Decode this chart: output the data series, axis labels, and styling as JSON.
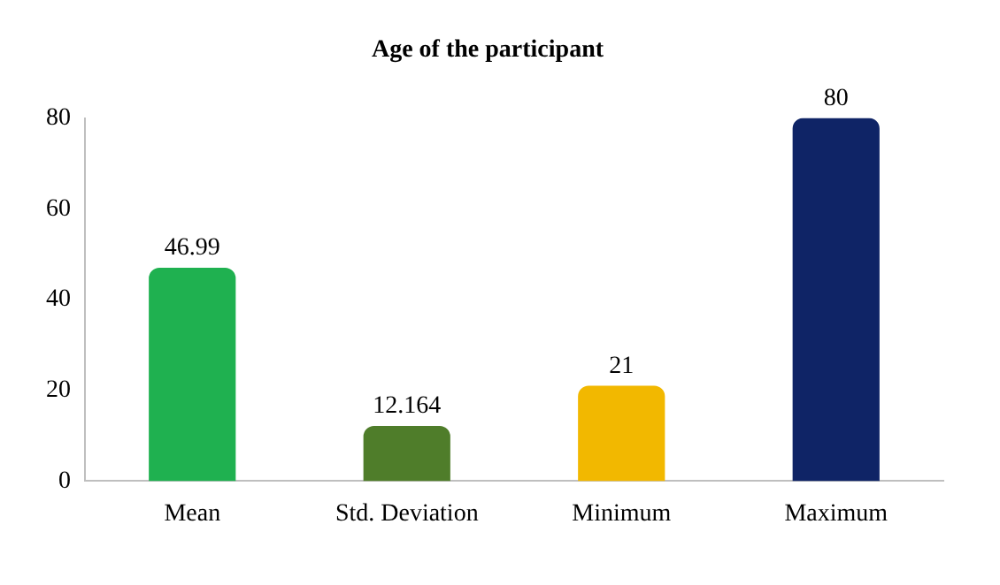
{
  "chart_data": {
    "type": "bar",
    "title": "Age of the participant",
    "categories": [
      "Mean",
      "Std. Deviation",
      "Minimum",
      "Maximum"
    ],
    "values": [
      46.99,
      12.164,
      21,
      80
    ],
    "colors": [
      "#1fb150",
      "#4f7d2a",
      "#f2b800",
      "#0f2466"
    ],
    "ylim": [
      0,
      80
    ],
    "yticks": [
      0,
      20,
      40,
      60,
      80
    ],
    "grid": false,
    "data_labels": true,
    "legend": false
  }
}
